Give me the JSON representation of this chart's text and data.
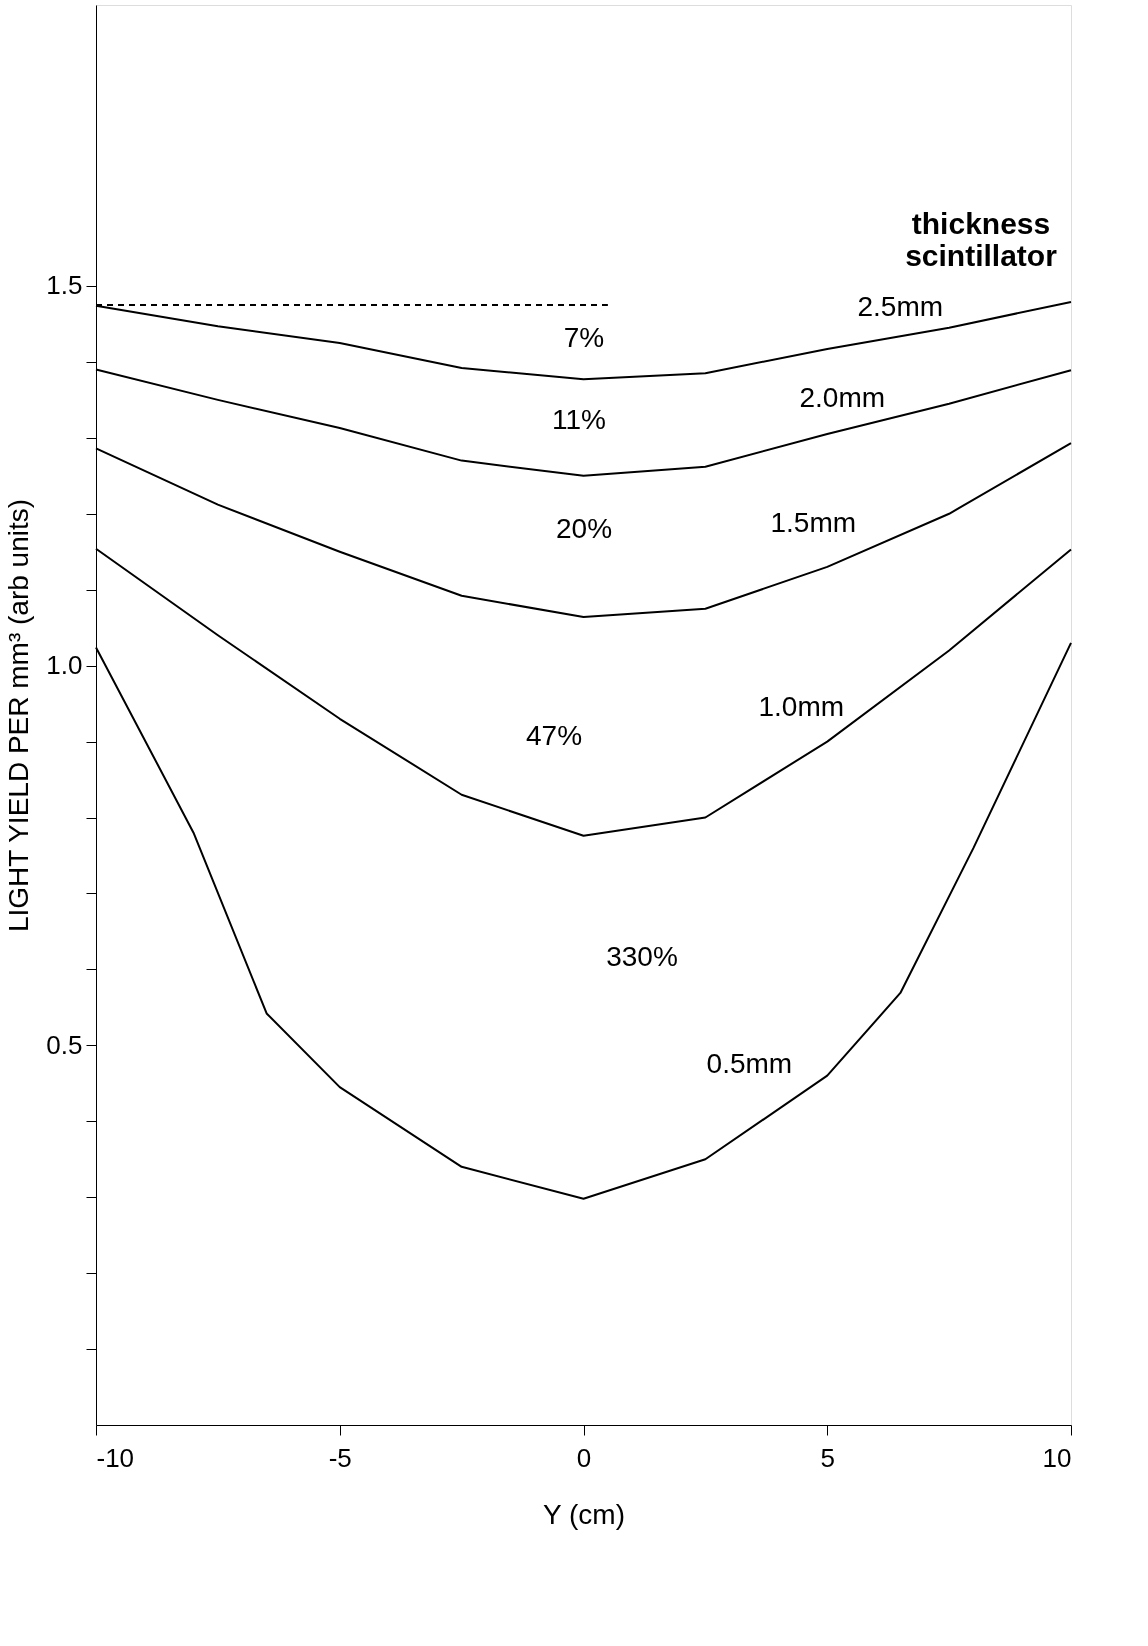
{
  "chart_data": {
    "type": "line",
    "xlabel": "Y (cm)",
    "ylabel": "LIGHT YIELD PER mm³ (arb units)",
    "legend_title": "thickness scintillator",
    "xlim": [
      -10,
      10
    ],
    "xticks": [
      -10,
      -5,
      0,
      5,
      10
    ],
    "ylim": [
      0,
      1.87
    ],
    "yticks": [
      {
        "value": 0.1,
        "label": null
      },
      {
        "value": 0.2,
        "label": null
      },
      {
        "value": 0.3,
        "label": null
      },
      {
        "value": 0.4,
        "label": null
      },
      0.5,
      {
        "value": 0.6,
        "label": null
      },
      {
        "value": 0.7,
        "label": null
      },
      {
        "value": 0.8,
        "label": null
      },
      {
        "value": 0.9,
        "label": null
      },
      {
        "value": 1,
        "label": "1.0"
      },
      {
        "value": 1.1,
        "label": null
      },
      {
        "value": 1.2,
        "label": null
      },
      {
        "value": 1.3,
        "label": null
      },
      {
        "value": 1.4,
        "label": null
      },
      1.5
    ],
    "grid": false,
    "marker": "none",
    "line_style": "solid",
    "x": [
      -10,
      -7.5,
      -5,
      -2.5,
      0,
      2.5,
      5,
      7.5,
      10
    ],
    "series": [
      {
        "name": "2.5mm",
        "color": "#000000",
        "values": [
          1.474,
          1.447,
          1.425,
          1.392,
          1.377,
          1.385,
          1.417,
          1.445,
          1.479
        ]
      },
      {
        "name": "2.0mm",
        "color": "#000000",
        "values": [
          1.39,
          1.35,
          1.313,
          1.27,
          1.25,
          1.262,
          1.305,
          1.345,
          1.389
        ]
      },
      {
        "name": "1.5mm",
        "color": "#000000",
        "values": [
          1.286,
          1.212,
          1.15,
          1.092,
          1.064,
          1.075,
          1.13,
          1.2,
          1.293
        ]
      },
      {
        "name": "1.0mm",
        "color": "#000000",
        "values": [
          1.154,
          1.04,
          0.93,
          0.83,
          0.776,
          0.8,
          0.9,
          1.02,
          1.153
        ]
      },
      {
        "name": "0.5mm",
        "color": "#000000",
        "x": [
          -10,
          -8,
          -6.5,
          -5,
          -2.5,
          0,
          2.5,
          5,
          6.5,
          8,
          10
        ],
        "values": [
          1.024,
          0.78,
          0.542,
          0.445,
          0.34,
          0.298,
          0.35,
          0.46,
          0.569,
          0.76,
          1.03
        ]
      },
      {
        "color": "#000000",
        "line_style": "dashed",
        "x": [
          -10,
          0.5
        ],
        "values": [
          1.475,
          1.475
        ]
      }
    ],
    "annotations": [
      "7%",
      "11%",
      "20%",
      "47%",
      "330%"
    ]
  }
}
